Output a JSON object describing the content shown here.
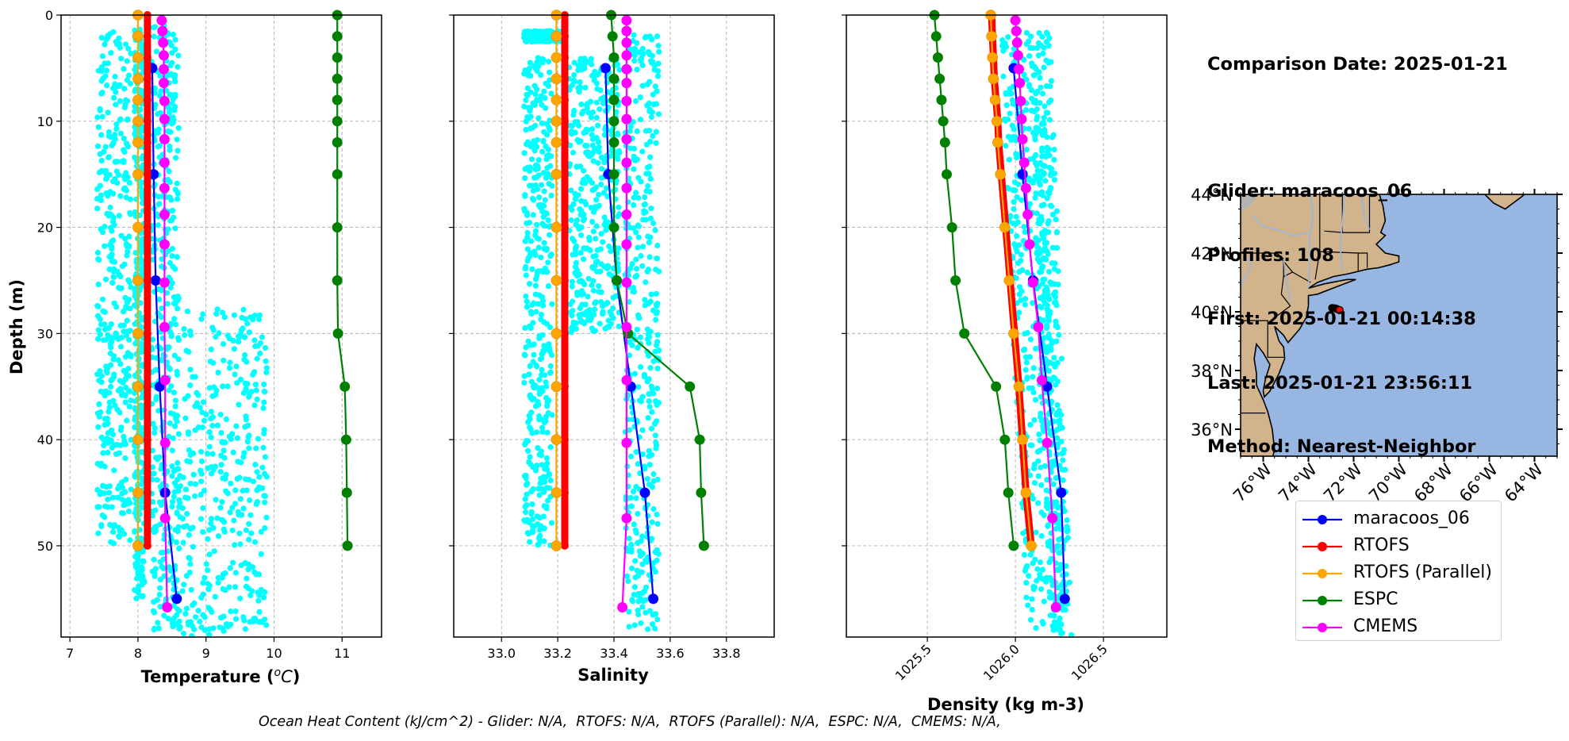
{
  "info": {
    "comparison_date": "Comparison Date: 2025-01-21",
    "glider": "Glider: maracoos_06",
    "profiles": "Profiles: 108",
    "first": "First: 2025-01-21 00:14:38",
    "last": "Last: 2025-01-21 23:56:11",
    "method": "Method: Nearest-Neighbor"
  },
  "footer": "Ocean Heat Content (kJ/cm^2) - Glider: N/A,  RTOFS: N/A,  RTOFS (Parallel): N/A,  ESPC: N/A,  CMEMS: N/A,",
  "legend": [
    {
      "name": "maracoos_06",
      "color": "#0000ff"
    },
    {
      "name": "RTOFS",
      "color": "#ff0000"
    },
    {
      "name": "RTOFS (Parallel)",
      "color": "#ffa500"
    },
    {
      "name": "ESPC",
      "color": "#008000"
    },
    {
      "name": "CMEMS",
      "color": "#ff00ff"
    }
  ],
  "colors": {
    "glider_scatter": "#00ffff",
    "land": "#d2b48c",
    "ocean": "#97b6e1",
    "rivers": "#97b6e1"
  },
  "chart_data": [
    {
      "type": "line",
      "panel": "temperature",
      "title": "",
      "xlabel": "Temperature (°C)",
      "ylabel": "Depth (m)",
      "xlim": [
        6.87,
        11.58
      ],
      "ylim": [
        58.6,
        0
      ],
      "xticks": [
        "7",
        "8",
        "9",
        "10",
        "11"
      ],
      "xtick_values": [
        7,
        8,
        9,
        10,
        11
      ],
      "yticks": [
        "0",
        "10",
        "20",
        "30",
        "40",
        "50"
      ],
      "ytick_values": [
        0,
        10,
        20,
        30,
        40,
        50
      ],
      "grid": true,
      "scatter": {
        "name": "glider profiles",
        "description": "cyan scatter of all glider measurements",
        "bands": [
          {
            "depth": [
              1.5,
              50
            ],
            "x": [
              7.4,
              7.9
            ]
          },
          {
            "depth": [
              1.2,
              55
            ],
            "x": [
              7.95,
              8.1
            ]
          },
          {
            "depth": [
              1.0,
              58.5
            ],
            "x": [
              8.2,
              8.6
            ]
          },
          {
            "depth": [
              27.5,
              58.5
            ],
            "x": [
              8.6,
              9.9
            ]
          }
        ]
      },
      "series": [
        {
          "name": "maracoos_06",
          "depth": [
            5,
            15,
            25,
            35,
            45,
            55
          ],
          "values": [
            8.21,
            8.23,
            8.26,
            8.32,
            8.4,
            8.57
          ]
        },
        {
          "name": "RTOFS",
          "depth": [
            0,
            2,
            4,
            6,
            8,
            10,
            12,
            15,
            20,
            25,
            30,
            35,
            40,
            45,
            50
          ],
          "values": [
            8.14,
            8.14,
            8.14,
            8.14,
            8.14,
            8.14,
            8.14,
            8.14,
            8.14,
            8.14,
            8.14,
            8.14,
            8.14,
            8.14,
            8.14
          ]
        },
        {
          "name": "RTOFS (Parallel)",
          "depth": [
            0,
            2,
            4,
            6,
            8,
            10,
            12,
            15,
            20,
            25,
            30,
            35,
            40,
            45,
            50
          ],
          "values": [
            8.0,
            8.0,
            8.0,
            8.0,
            8.0,
            8.0,
            8.0,
            8.0,
            8.0,
            8.0,
            8.0,
            8.0,
            8.0,
            8.0,
            8.0
          ]
        },
        {
          "name": "ESPC",
          "depth": [
            0,
            2,
            4,
            6,
            8,
            10,
            12,
            15,
            20,
            25,
            30,
            35,
            40,
            45,
            50
          ],
          "values": [
            10.93,
            10.93,
            10.93,
            10.93,
            10.93,
            10.93,
            10.93,
            10.93,
            10.93,
            10.93,
            10.94,
            11.04,
            11.06,
            11.07,
            11.08
          ]
        },
        {
          "name": "CMEMS",
          "depth": [
            0.5,
            1.5,
            2.6,
            3.8,
            5.1,
            6.4,
            8.1,
            9.8,
            11.7,
            13.9,
            16.3,
            18.8,
            21.6,
            25.2,
            29.4,
            34.4,
            40.3,
            47.4,
            55.8
          ],
          "values": [
            8.35,
            8.36,
            8.37,
            8.38,
            8.38,
            8.38,
            8.39,
            8.39,
            8.39,
            8.39,
            8.39,
            8.39,
            8.39,
            8.39,
            8.39,
            8.4,
            8.4,
            8.4,
            8.43
          ]
        }
      ]
    },
    {
      "type": "line",
      "panel": "salinity",
      "title": "",
      "xlabel": "Salinity",
      "ylabel": "",
      "xlim": [
        32.83,
        33.97
      ],
      "ylim": [
        58.6,
        0
      ],
      "xticks": [
        "33.0",
        "33.2",
        "33.4",
        "33.6",
        "33.8"
      ],
      "xtick_values": [
        33.0,
        33.2,
        33.4,
        33.6,
        33.8
      ],
      "grid": true,
      "scatter": {
        "name": "glider profiles",
        "bands": [
          {
            "depth": [
              1.5,
              2.5
            ],
            "x": [
              33.08,
              33.22
            ]
          },
          {
            "depth": [
              4,
              50
            ],
            "x": [
              33.08,
              33.18
            ]
          },
          {
            "depth": [
              1.5,
              58.5
            ],
            "x": [
              33.44,
              33.56
            ]
          },
          {
            "depth": [
              4,
              30
            ],
            "x": [
              33.24,
              33.42
            ]
          }
        ]
      },
      "series": [
        {
          "name": "maracoos_06",
          "depth": [
            5,
            15,
            25,
            35,
            45,
            55
          ],
          "values": [
            33.37,
            33.38,
            33.41,
            33.46,
            33.51,
            33.54
          ]
        },
        {
          "name": "RTOFS",
          "depth": [
            0,
            2,
            4,
            6,
            8,
            10,
            12,
            15,
            20,
            25,
            30,
            35,
            40,
            45,
            50
          ],
          "values": [
            33.225,
            33.225,
            33.225,
            33.225,
            33.225,
            33.225,
            33.225,
            33.225,
            33.225,
            33.225,
            33.225,
            33.225,
            33.225,
            33.225,
            33.225
          ]
        },
        {
          "name": "RTOFS (Parallel)",
          "depth": [
            0,
            2,
            4,
            6,
            8,
            10,
            12,
            15,
            20,
            25,
            30,
            35,
            40,
            45,
            50
          ],
          "values": [
            33.195,
            33.195,
            33.195,
            33.195,
            33.195,
            33.195,
            33.195,
            33.195,
            33.195,
            33.195,
            33.195,
            33.195,
            33.195,
            33.195,
            33.195
          ]
        },
        {
          "name": "ESPC",
          "depth": [
            0,
            2,
            4,
            6,
            8,
            10,
            12,
            15,
            20,
            25,
            30,
            35,
            40,
            45,
            50
          ],
          "values": [
            33.39,
            33.395,
            33.4,
            33.4,
            33.4,
            33.4,
            33.4,
            33.4,
            33.4,
            33.41,
            33.45,
            33.67,
            33.705,
            33.71,
            33.72
          ]
        },
        {
          "name": "CMEMS",
          "depth": [
            0.5,
            1.5,
            2.6,
            3.8,
            5.1,
            6.4,
            8.1,
            9.8,
            11.7,
            13.9,
            16.3,
            18.8,
            21.6,
            25.2,
            29.4,
            34.4,
            40.3,
            47.4,
            55.8
          ],
          "values": [
            33.445,
            33.445,
            33.445,
            33.445,
            33.445,
            33.445,
            33.445,
            33.445,
            33.445,
            33.445,
            33.445,
            33.445,
            33.445,
            33.445,
            33.445,
            33.445,
            33.445,
            33.445,
            33.43
          ]
        }
      ]
    },
    {
      "type": "line",
      "panel": "density",
      "title": "",
      "xlabel": "Density (kg m-3)",
      "ylabel": "",
      "xlim": [
        1025.04,
        1026.86
      ],
      "ylim": [
        58.6,
        0
      ],
      "xticks": [
        "1025.5",
        "1026.0",
        "1026.5"
      ],
      "xtick_values": [
        1025.5,
        1026.0,
        1026.5
      ],
      "grid": true,
      "scatter": {
        "name": "glider profiles",
        "bands": [
          {
            "depth": [
              1.5,
              58.5
            ],
            "x0": [
              1025.9,
              1026.1
            ],
            "x1": [
              1026.07,
              1026.3
            ]
          },
          {
            "depth": [
              1.5,
              58.5
            ],
            "x0": [
              1026.07,
              1026.2
            ],
            "x1": [
              1026.2,
              1026.32
            ]
          }
        ]
      },
      "series": [
        {
          "name": "maracoos_06",
          "depth": [
            5,
            15,
            25,
            35,
            45,
            55
          ],
          "values": [
            1025.99,
            1026.04,
            1026.1,
            1026.18,
            1026.26,
            1026.28
          ]
        },
        {
          "name": "RTOFS",
          "depth": [
            0,
            2,
            4,
            6,
            8,
            10,
            12,
            15,
            20,
            25,
            30,
            35,
            40,
            45,
            50
          ],
          "values": [
            1025.865,
            1025.87,
            1025.875,
            1025.88,
            1025.89,
            1025.9,
            1025.905,
            1025.92,
            1025.945,
            1025.97,
            1025.995,
            1026.02,
            1026.04,
            1026.06,
            1026.09
          ]
        },
        {
          "name": "RTOFS (Parallel)",
          "depth": [
            0,
            2,
            4,
            6,
            8,
            10,
            12,
            15,
            20,
            25,
            30,
            35,
            40,
            45,
            50
          ],
          "values": [
            1025.86,
            1025.865,
            1025.87,
            1025.875,
            1025.885,
            1025.895,
            1025.9,
            1025.915,
            1025.94,
            1025.965,
            1025.99,
            1026.02,
            1026.04,
            1026.06,
            1026.09
          ]
        },
        {
          "name": "ESPC",
          "depth": [
            0,
            2,
            4,
            6,
            8,
            10,
            12,
            15,
            20,
            25,
            30,
            35,
            40,
            45,
            50
          ],
          "values": [
            1025.54,
            1025.55,
            1025.56,
            1025.57,
            1025.58,
            1025.59,
            1025.6,
            1025.61,
            1025.64,
            1025.66,
            1025.71,
            1025.89,
            1025.94,
            1025.96,
            1025.99
          ]
        },
        {
          "name": "CMEMS",
          "depth": [
            0.5,
            1.5,
            2.6,
            3.8,
            5.1,
            6.4,
            8.1,
            9.8,
            11.7,
            13.9,
            16.3,
            18.8,
            21.6,
            25.2,
            29.4,
            34.4,
            40.3,
            47.4,
            55.8
          ],
          "values": [
            1026.0,
            1026.005,
            1026.01,
            1026.015,
            1026.02,
            1026.025,
            1026.03,
            1026.035,
            1026.04,
            1026.05,
            1026.06,
            1026.07,
            1026.08,
            1026.1,
            1026.13,
            1026.15,
            1026.18,
            1026.21,
            1026.23
          ]
        }
      ]
    },
    {
      "type": "scatter",
      "panel": "map",
      "title": "",
      "lon_lim": [
        -77.0,
        -63.0
      ],
      "lat_lim": [
        35.08,
        44.0
      ],
      "xticks": [
        "76°W",
        "74°W",
        "72°W",
        "70°W",
        "68°W",
        "66°W",
        "64°W"
      ],
      "xtick_values": [
        -76,
        -74,
        -72,
        -70,
        -68,
        -66,
        -64
      ],
      "yticks": [
        "44°N",
        "42°N",
        "40°N",
        "38°N",
        "36°N"
      ],
      "ytick_values": [
        44,
        42,
        40,
        38,
        36
      ],
      "glider_track": {
        "lon": [
          -72.95,
          -72.85,
          -72.75,
          -72.7
        ],
        "lat": [
          40.13,
          40.12,
          40.1,
          40.08
        ]
      },
      "glider_latest": {
        "lon": [
          -72.62
        ],
        "lat": [
          40.06
        ]
      },
      "legend": "bottom"
    }
  ]
}
